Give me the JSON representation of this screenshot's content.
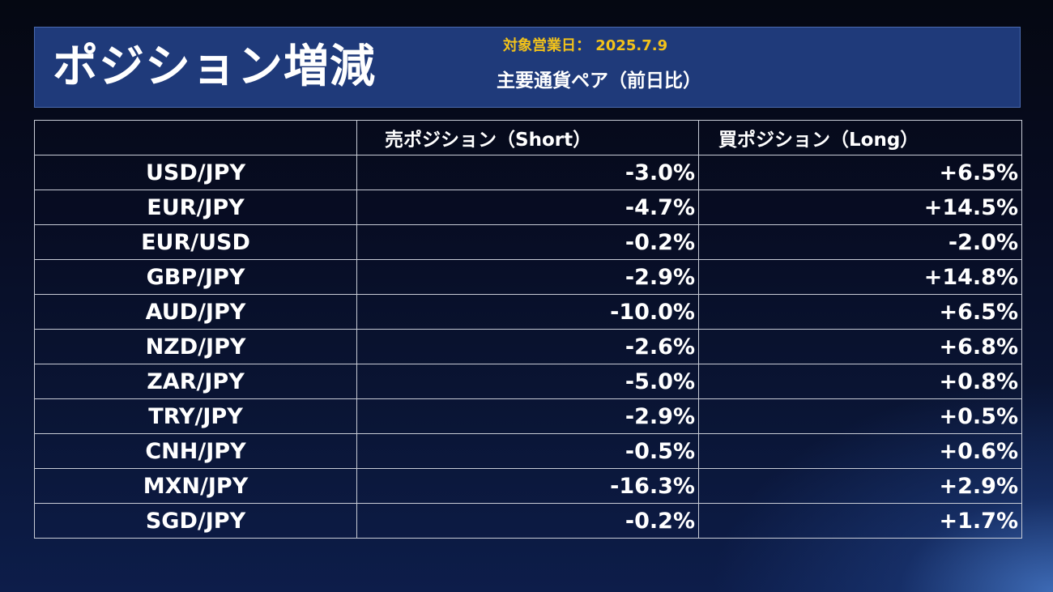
{
  "header": {
    "title": "ポジション増減",
    "date_line": "対象営業日： 2025.7.9",
    "subtitle": "主要通貨ペア（前日比）"
  },
  "table": {
    "columns": [
      "",
      "売ポジション（Short）",
      "買ポジション（Long）"
    ],
    "rows": [
      {
        "pair": "USD/JPY",
        "short": "-3.0%",
        "long": "+6.5%"
      },
      {
        "pair": "EUR/JPY",
        "short": "-4.7%",
        "long": "+14.5%"
      },
      {
        "pair": "EUR/USD",
        "short": "-0.2%",
        "long": "-2.0%"
      },
      {
        "pair": "GBP/JPY",
        "short": "-2.9%",
        "long": "+14.8%"
      },
      {
        "pair": "AUD/JPY",
        "short": "-10.0%",
        "long": "+6.5%"
      },
      {
        "pair": "NZD/JPY",
        "short": "-2.6%",
        "long": "+6.8%"
      },
      {
        "pair": "ZAR/JPY",
        "short": "-5.0%",
        "long": "+0.8%"
      },
      {
        "pair": "TRY/JPY",
        "short": "-2.9%",
        "long": "+0.5%"
      },
      {
        "pair": "CNH/JPY",
        "short": "-0.5%",
        "long": "+0.6%"
      },
      {
        "pair": "MXN/JPY",
        "short": "-16.3%",
        "long": "+2.9%"
      },
      {
        "pair": "SGD/JPY",
        "short": "-0.2%",
        "long": "+1.7%"
      }
    ]
  },
  "colors": {
    "accent_date": "#f2c21a",
    "header_bg": "#1f3a7a",
    "text": "#ffffff"
  },
  "chart_data": {
    "type": "table",
    "title": "ポジション増減",
    "subtitle": "主要通貨ペア（前日比）",
    "columns": [
      "",
      "売ポジション（Short）",
      "買ポジション（Long）"
    ],
    "categories": [
      "USD/JPY",
      "EUR/JPY",
      "EUR/USD",
      "GBP/JPY",
      "AUD/JPY",
      "NZD/JPY",
      "ZAR/JPY",
      "TRY/JPY",
      "CNH/JPY",
      "MXN/JPY",
      "SGD/JPY"
    ],
    "series": [
      {
        "name": "売ポジション（Short）",
        "values": [
          -3.0,
          -4.7,
          -0.2,
          -2.9,
          -10.0,
          -2.6,
          -5.0,
          -2.9,
          -0.5,
          -16.3,
          -0.2
        ]
      },
      {
        "name": "買ポジション（Long）",
        "values": [
          6.5,
          14.5,
          -2.0,
          14.8,
          6.5,
          6.8,
          0.8,
          0.5,
          0.6,
          2.9,
          1.7
        ]
      }
    ]
  }
}
